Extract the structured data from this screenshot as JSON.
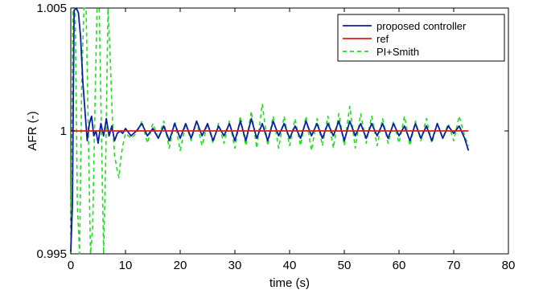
{
  "chart_data": {
    "type": "line",
    "title": "",
    "xlabel": "time (s)",
    "ylabel": "AFR (-)",
    "xlim": [
      0,
      80
    ],
    "ylim": [
      0.995,
      1.005
    ],
    "x_ticks": [
      0,
      10,
      20,
      30,
      40,
      50,
      60,
      70,
      80
    ],
    "x_tick_labels": [
      "0",
      "10",
      "20",
      "30",
      "40",
      "50",
      "60",
      "70",
      "80"
    ],
    "y_ticks": [
      0.995,
      1,
      1.005
    ],
    "y_tick_labels": [
      "0.995",
      "1",
      "1.005"
    ],
    "grid": false,
    "legend_position": "top-right",
    "series": [
      {
        "name": "proposed controller",
        "color": "#0b1fa5",
        "style": "solid",
        "x": [
          0,
          0.3,
          0.6,
          1.0,
          1.4,
          1.8,
          2.2,
          2.6,
          3.0,
          3.4,
          3.8,
          4.2,
          4.6,
          5.0,
          5.5,
          6.0,
          6.5,
          7.0,
          7.5,
          8.0,
          8.5,
          9.0,
          9.5,
          10,
          11,
          12,
          13,
          14,
          15,
          16,
          17,
          18,
          19,
          20,
          21,
          22,
          23,
          24,
          25,
          26,
          27,
          28,
          29,
          30,
          31,
          32,
          33,
          34,
          35,
          36,
          37,
          38,
          39,
          40,
          41,
          42,
          43,
          44,
          45,
          46,
          47,
          48,
          49,
          50,
          51,
          52,
          53,
          54,
          55,
          56,
          57,
          58,
          59,
          60,
          61,
          62,
          63,
          64,
          65,
          66,
          67,
          68,
          69,
          70,
          71,
          72,
          72.7
        ],
        "y": [
          0.9951,
          0.997,
          1.0049,
          1.0051,
          1.0048,
          1.0038,
          1.002,
          1.0008,
          0.9996,
          1.0003,
          1.0006,
          0.9998,
          1.0,
          0.9995,
          1.0003,
          0.9998,
          1.0005,
          0.9998,
          1.0002,
          0.9996,
          0.9999,
          1.0,
          0.9999,
          1.0001,
          0.9998,
          1.0,
          1.0003,
          0.9998,
          1.0001,
          0.9997,
          1.0002,
          0.9996,
          1.0003,
          0.9997,
          1.0003,
          0.9997,
          1.0004,
          0.9998,
          1.0003,
          0.9996,
          1.0002,
          0.9998,
          1.0003,
          0.9996,
          1.0004,
          0.9996,
          1.0005,
          0.9997,
          1.0003,
          0.9996,
          1.0004,
          0.9998,
          1.0003,
          0.9997,
          1.0002,
          0.9997,
          1.0004,
          0.9998,
          1.0003,
          0.9997,
          1.0003,
          0.9998,
          1.0004,
          0.9996,
          1.0004,
          0.9998,
          1.0003,
          0.9997,
          1.0003,
          0.9998,
          1.0003,
          0.9997,
          1.0003,
          0.9998,
          1.0002,
          0.9996,
          1.0003,
          0.9997,
          1.0002,
          0.9996,
          1.0003,
          0.9997,
          1.0002,
          0.9999,
          1.0002,
          0.9997,
          0.9992
        ]
      },
      {
        "name": "ref",
        "color": "#e41a1c",
        "style": "solid",
        "x": [
          0,
          72.7
        ],
        "y": [
          1,
          1
        ]
      },
      {
        "name": "PI+Smith",
        "color": "#22dd22",
        "style": "dashed",
        "x": [
          0,
          0.4,
          0.8,
          1.2,
          1.6,
          2.0,
          2.4,
          2.8,
          3.2,
          3.6,
          4.0,
          4.4,
          4.8,
          5.2,
          5.6,
          6.0,
          6.4,
          6.8,
          7.2,
          7.6,
          8.0,
          8.4,
          8.8,
          9.2,
          9.6,
          10,
          11,
          12,
          13,
          14,
          15,
          16,
          17,
          18,
          19,
          20,
          21,
          22,
          23,
          24,
          25,
          26,
          27,
          28,
          29,
          30,
          31,
          32,
          33,
          34,
          35,
          36,
          37,
          38,
          39,
          40,
          41,
          42,
          43,
          44,
          45,
          46,
          47,
          48,
          49,
          50,
          51,
          52,
          53,
          54,
          55,
          56,
          57,
          58,
          59,
          60,
          61,
          62,
          63,
          64,
          65,
          66,
          67,
          68,
          69,
          70,
          71,
          72,
          72.7
        ],
        "y": [
          0.995,
          1.005,
          1.005,
          0.997,
          0.995,
          1.002,
          1.005,
          1.005,
          1.0,
          0.995,
          0.996,
          1.0008,
          1.005,
          1.005,
          1.0,
          0.995,
          0.999,
          1.005,
          1.003,
          1.0005,
          0.999,
          0.9985,
          0.9981,
          0.999,
          0.9995,
          0.9999,
          0.9997,
          0.9999,
          1.0004,
          0.9995,
          1.0003,
          0.9997,
          1.0004,
          0.9993,
          1.0004,
          0.9992,
          1.0003,
          0.9996,
          1.0004,
          0.9994,
          1.0003,
          0.9995,
          1.0003,
          0.9995,
          1.0004,
          0.9993,
          1.0006,
          0.9994,
          1.0008,
          0.9993,
          1.0011,
          0.9994,
          1.0006,
          0.9993,
          1.0006,
          0.9994,
          1.0005,
          0.9994,
          1.0006,
          0.9992,
          1.0005,
          0.9994,
          1.0006,
          0.9993,
          1.0007,
          0.9994,
          1.001,
          0.9993,
          1.0007,
          0.9995,
          1.0006,
          0.9994,
          1.0005,
          0.9995,
          1.0004,
          0.9995,
          1.0006,
          0.9994,
          1.0004,
          0.9996,
          1.0005,
          0.9995,
          1.0003,
          0.9997,
          1.0003,
          0.9996,
          1.0006,
          0.9998,
          0.9994
        ]
      }
    ]
  }
}
